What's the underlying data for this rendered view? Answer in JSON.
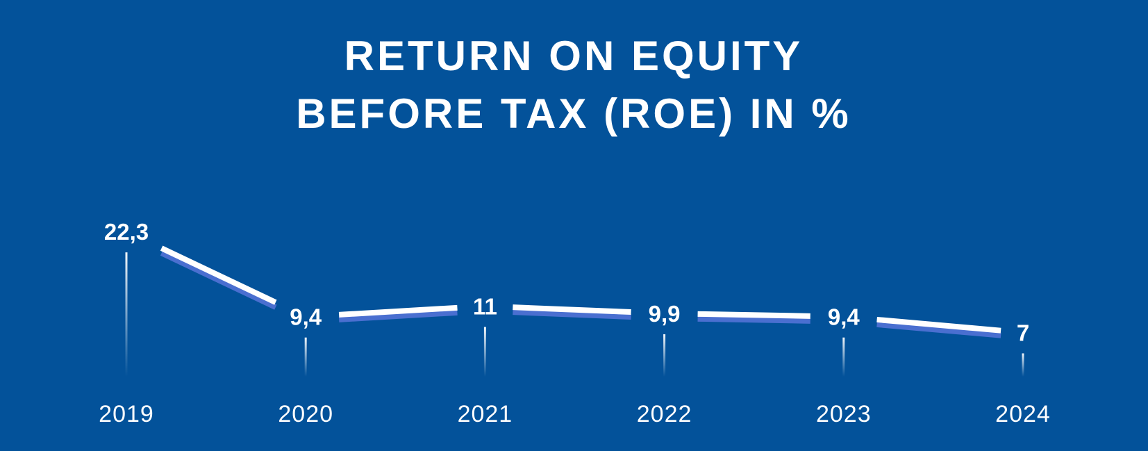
{
  "chart_data": {
    "type": "line",
    "title_lines": [
      "RETURN ON EQUITY",
      "BEFORE TAX (ROE) IN %"
    ],
    "categories": [
      "2019",
      "2020",
      "2021",
      "2022",
      "2023",
      "2024"
    ],
    "values": [
      22.3,
      9.4,
      11,
      9.9,
      9.4,
      7
    ],
    "value_labels": [
      "22,3",
      "9,4",
      "11",
      "9,9",
      "9,4",
      "7"
    ],
    "xlabel": "",
    "ylabel": "",
    "grid": false,
    "legend": "none",
    "colors": {
      "background": "#03529a",
      "line": "#ffffff",
      "line_shadow": "#4a6fd0",
      "text": "#ffffff"
    }
  }
}
